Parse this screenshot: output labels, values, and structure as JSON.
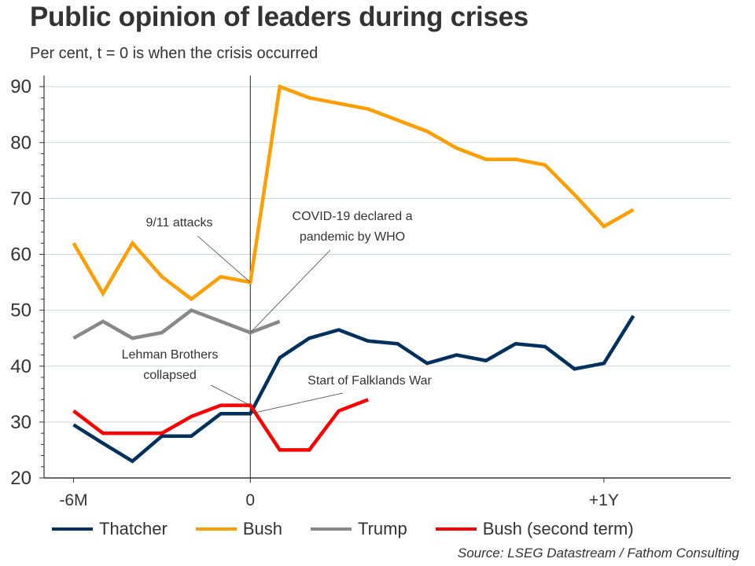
{
  "chart_data": {
    "type": "line",
    "title": "Public opinion of leaders during crises",
    "subtitle": "Per cent, t = 0 is when the crisis occurred",
    "xlabel": "",
    "ylabel": "",
    "x_unit": "months relative to crisis",
    "xlim": [
      -7,
      16.3
    ],
    "ylim": [
      20,
      92
    ],
    "yticks": [
      20,
      30,
      40,
      50,
      60,
      70,
      80,
      90
    ],
    "xticks": [
      {
        "value": -6,
        "label": "-6M"
      },
      {
        "value": 0,
        "label": "0"
      },
      {
        "value": 12,
        "label": "+1Y"
      }
    ],
    "grid": "horizontal",
    "legend_position": "bottom",
    "series": [
      {
        "name": "Thatcher",
        "color": "#00305E",
        "x": [
          -6,
          -5,
          -4,
          -3,
          -2,
          -1,
          0,
          1,
          2,
          3,
          4,
          5,
          6,
          7,
          8,
          9,
          10,
          11,
          12,
          13
        ],
        "values": [
          29.5,
          26.2,
          23,
          27.5,
          27.5,
          31.5,
          31.5,
          41.5,
          45,
          46.5,
          44.5,
          44,
          40.5,
          42,
          41,
          44,
          43.5,
          39.5,
          40.5,
          49
        ]
      },
      {
        "name": "Bush",
        "color": "#FF9E00",
        "x": [
          -6,
          -5,
          -4,
          -3,
          -2,
          -1,
          0,
          1,
          2,
          3,
          4,
          5,
          6,
          7,
          8,
          9,
          10,
          11,
          12,
          13
        ],
        "values": [
          62,
          53,
          62,
          56,
          52,
          56,
          55,
          90,
          88,
          87,
          86,
          84,
          82,
          79,
          77,
          77,
          76,
          70.7,
          65,
          68
        ]
      },
      {
        "name": "Trump",
        "color": "#888888",
        "x": [
          -6,
          -5,
          -4,
          -3,
          -2,
          -1,
          0,
          1
        ],
        "values": [
          45,
          48,
          45,
          46,
          50,
          48,
          46,
          48
        ]
      },
      {
        "name": "Bush (second term)",
        "color": "#FF0000",
        "x": [
          -6,
          -5,
          -4,
          -3,
          -2,
          -1,
          0,
          1,
          2,
          3,
          4
        ],
        "values": [
          32,
          28,
          28,
          28,
          31,
          33,
          33,
          25,
          25,
          32,
          34
        ]
      }
    ],
    "annotations": [
      {
        "text": [
          "9/11 attacks"
        ],
        "points_to": {
          "series": "Bush",
          "x": 0,
          "y": 55
        }
      },
      {
        "text": [
          "COVID-19 declared a",
          "pandemic by WHO"
        ],
        "points_to": {
          "series": "Trump",
          "x": 0,
          "y": 46
        }
      },
      {
        "text": [
          "Lehman Brothers",
          "collapsed"
        ],
        "points_to": {
          "series": "Bush (second term)",
          "x": 0,
          "y": 33
        }
      },
      {
        "text": [
          "Start of Falklands War"
        ],
        "points_to": {
          "series": "Thatcher",
          "x": 0,
          "y": 31.5
        }
      }
    ],
    "source": "Source: LSEG Datastream / Fathom Consulting"
  }
}
